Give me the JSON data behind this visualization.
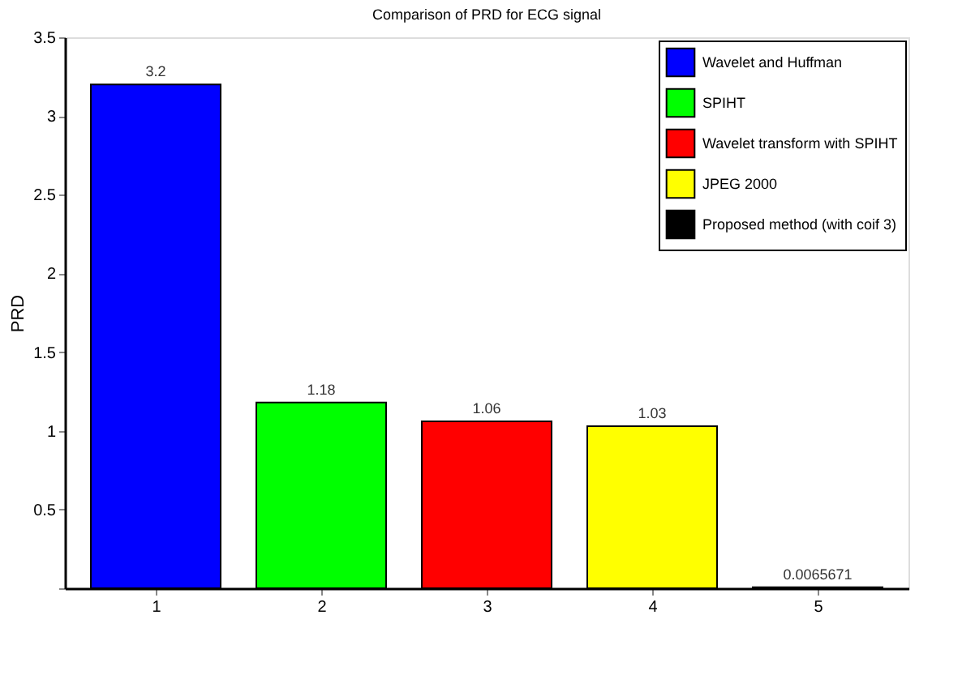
{
  "chart_data": {
    "type": "bar",
    "title": "Comparison of PRD for ECG signal",
    "ylabel": "PRD",
    "categories": [
      "1",
      "2",
      "3",
      "4",
      "5"
    ],
    "series": [
      {
        "name": "Wavelet and Huffman",
        "color": "#0000ff",
        "values": [
          3.2,
          null,
          null,
          null,
          null
        ]
      },
      {
        "name": "SPIHT",
        "color": "#00ff00",
        "values": [
          null,
          1.18,
          null,
          null,
          null
        ]
      },
      {
        "name": "Wavelet transform with SPIHT",
        "color": "#ff0000",
        "values": [
          null,
          null,
          1.06,
          null,
          null
        ]
      },
      {
        "name": "JPEG 2000",
        "color": "#ffff00",
        "values": [
          null,
          null,
          null,
          1.03,
          null
        ]
      },
      {
        "name": "Proposed method (with coif 3)",
        "color": "#000000",
        "values": [
          null,
          null,
          null,
          null,
          0.0065671
        ]
      }
    ],
    "ylim": [
      0,
      3.5
    ],
    "yticks": [
      {
        "value": 0,
        "label": null
      },
      0.5,
      1,
      1.5,
      2,
      2.5,
      3,
      3.5
    ],
    "data_labels": true,
    "legend": "top right",
    "grid": false
  }
}
